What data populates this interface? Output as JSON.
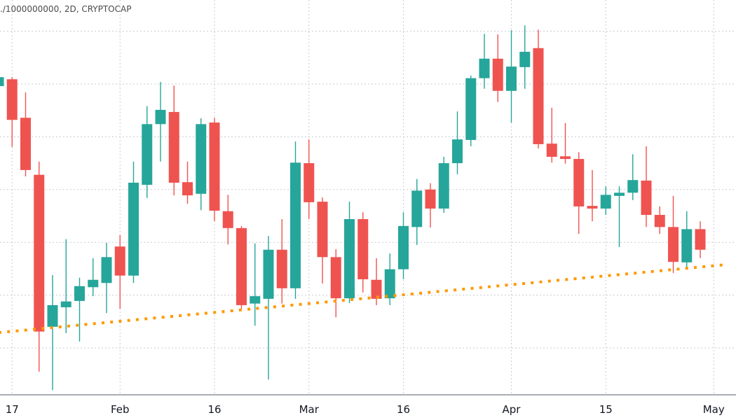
{
  "header": {
    "series_label": "./1000000000, 2D, CRYPTOCAP"
  },
  "chart_data": {
    "type": "candlestick",
    "title": "",
    "xlabel": "",
    "ylabel": "",
    "interval": "2D",
    "y_axis_labels_shown": false,
    "y_gridlines": [
      0,
      1,
      2,
      3,
      4,
      5,
      6
    ],
    "ylim": [
      -1.0,
      6.55
    ],
    "grid": true,
    "colors": {
      "up": "#26a69a",
      "down": "#ef5350",
      "trendline": "#ff9800",
      "grid": "#c8ccd4",
      "axis": "#787b86"
    },
    "x_ticks": [
      {
        "date": "2021-01-17",
        "label": "17"
      },
      {
        "date": "2021-02-02",
        "label": "Feb"
      },
      {
        "date": "2021-02-16",
        "label": "16"
      },
      {
        "date": "2021-03-02",
        "label": "Mar"
      },
      {
        "date": "2021-03-16",
        "label": "16"
      },
      {
        "date": "2021-04-01",
        "label": "Apr"
      },
      {
        "date": "2021-04-15",
        "label": "15"
      },
      {
        "date": "2021-05-01",
        "label": "May"
      }
    ],
    "dates": [
      "2021-01-15",
      "2021-01-17",
      "2021-01-19",
      "2021-01-21",
      "2021-01-23",
      "2021-01-25",
      "2021-01-27",
      "2021-01-29",
      "2021-01-31",
      "2021-02-02",
      "2021-02-04",
      "2021-02-06",
      "2021-02-08",
      "2021-02-10",
      "2021-02-12",
      "2021-02-14",
      "2021-02-16",
      "2021-02-18",
      "2021-02-20",
      "2021-02-22",
      "2021-02-24",
      "2021-02-26",
      "2021-02-28",
      "2021-03-02",
      "2021-03-04",
      "2021-03-06",
      "2021-03-08",
      "2021-03-10",
      "2021-03-12",
      "2021-03-14",
      "2021-03-16",
      "2021-03-18",
      "2021-03-20",
      "2021-03-22",
      "2021-03-24",
      "2021-03-26",
      "2021-03-28",
      "2021-03-30",
      "2021-04-01",
      "2021-04-03",
      "2021-04-05",
      "2021-04-07",
      "2021-04-09",
      "2021-04-11",
      "2021-04-13",
      "2021-04-15",
      "2021-04-17",
      "2021-04-19",
      "2021-04-21",
      "2021-04-23",
      "2021-04-25",
      "2021-04-27",
      "2021-04-29"
    ],
    "ohlc": [
      [
        4.96,
        5.13,
        4.96,
        5.13
      ],
      [
        5.09,
        5.13,
        3.81,
        4.32
      ],
      [
        4.36,
        4.84,
        3.25,
        3.37
      ],
      [
        3.28,
        3.53,
        -0.45,
        0.31
      ],
      [
        0.4,
        1.38,
        -0.8,
        0.81
      ],
      [
        0.77,
        2.06,
        0.28,
        0.88
      ],
      [
        0.89,
        1.33,
        0.12,
        1.17
      ],
      [
        1.15,
        1.7,
        0.98,
        1.29
      ],
      [
        1.23,
        1.99,
        0.66,
        1.72
      ],
      [
        1.92,
        2.14,
        0.74,
        1.37
      ],
      [
        1.37,
        3.53,
        1.23,
        3.13
      ],
      [
        3.09,
        4.58,
        2.84,
        4.24
      ],
      [
        4.24,
        5.04,
        3.53,
        4.51
      ],
      [
        4.47,
        4.97,
        2.89,
        3.13
      ],
      [
        3.14,
        3.53,
        2.73,
        2.89
      ],
      [
        2.92,
        4.35,
        2.61,
        4.24
      ],
      [
        4.27,
        4.36,
        2.4,
        2.6
      ],
      [
        2.59,
        2.9,
        1.96,
        2.27
      ],
      [
        2.27,
        2.31,
        0.74,
        0.81
      ],
      [
        0.84,
        1.98,
        0.42,
        0.98
      ],
      [
        0.93,
        2.12,
        -0.6,
        1.86
      ],
      [
        1.86,
        2.44,
        0.84,
        1.13
      ],
      [
        1.13,
        3.91,
        0.93,
        3.51
      ],
      [
        3.5,
        3.95,
        2.44,
        2.76
      ],
      [
        2.77,
        2.85,
        1.22,
        1.72
      ],
      [
        1.72,
        1.87,
        0.58,
        0.94
      ],
      [
        0.94,
        2.77,
        0.85,
        2.44
      ],
      [
        2.44,
        2.57,
        1.05,
        1.3
      ],
      [
        1.29,
        1.7,
        0.81,
        0.93
      ],
      [
        0.94,
        1.79,
        0.81,
        1.49
      ],
      [
        1.49,
        2.57,
        1.3,
        2.31
      ],
      [
        2.29,
        3.2,
        1.95,
        2.98
      ],
      [
        3.0,
        3.12,
        2.28,
        2.64
      ],
      [
        2.64,
        3.62,
        2.56,
        3.5
      ],
      [
        3.5,
        4.48,
        3.29,
        3.95
      ],
      [
        3.94,
        5.16,
        3.82,
        5.11
      ],
      [
        5.11,
        5.95,
        4.91,
        5.48
      ],
      [
        5.48,
        5.94,
        4.66,
        4.87
      ],
      [
        4.87,
        6.02,
        4.27,
        5.33
      ],
      [
        5.32,
        6.11,
        4.91,
        5.61
      ],
      [
        5.68,
        6.03,
        3.78,
        3.86
      ],
      [
        3.87,
        4.55,
        3.51,
        3.62
      ],
      [
        3.63,
        4.26,
        3.49,
        3.58
      ],
      [
        3.58,
        3.71,
        2.16,
        2.68
      ],
      [
        2.69,
        3.37,
        2.4,
        2.64
      ],
      [
        2.64,
        3.06,
        2.52,
        2.9
      ],
      [
        2.88,
        3.06,
        1.91,
        2.94
      ],
      [
        2.94,
        3.67,
        2.8,
        3.18
      ],
      [
        3.17,
        3.82,
        2.29,
        2.52
      ],
      [
        2.52,
        2.68,
        2.16,
        2.29
      ],
      [
        2.29,
        2.88,
        1.42,
        1.63
      ],
      [
        1.62,
        2.59,
        1.53,
        2.25
      ],
      [
        2.25,
        2.4,
        1.7,
        1.86
      ]
    ],
    "trendline": {
      "style": "dotted",
      "points": [
        {
          "date": "2021-01-15",
          "value": 0.29
        },
        {
          "date": "2021-05-03",
          "value": 1.58
        }
      ]
    }
  }
}
